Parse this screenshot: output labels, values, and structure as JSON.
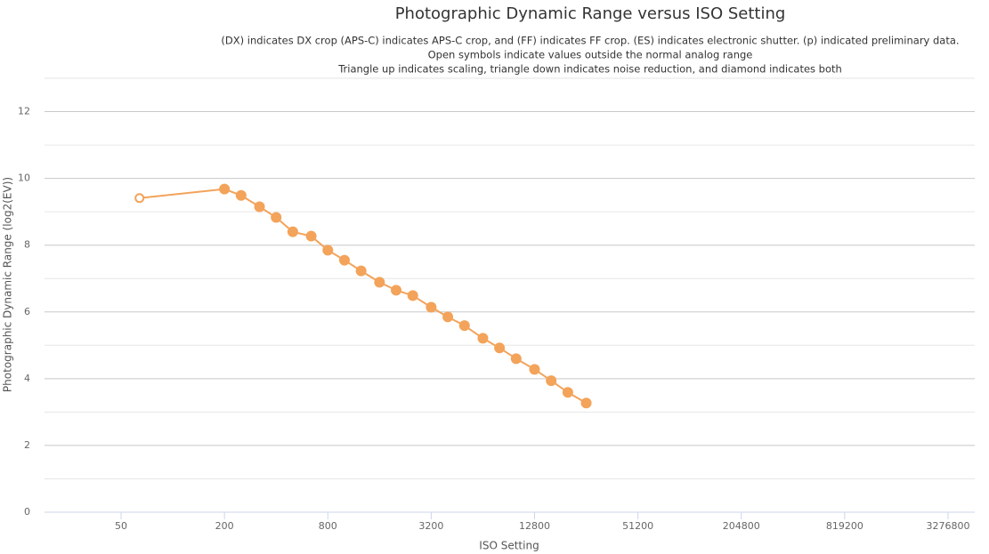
{
  "chart_data": {
    "type": "line",
    "title": "Photographic Dynamic Range versus ISO Setting",
    "subtitle": [
      "(DX) indicates DX crop (APS-C) indicates APS-C crop, and (FF) indicates FF crop. (ES) indicates electronic shutter. (p) indicated preliminary data.",
      "Open symbols indicate values outside the normal analog range",
      "Triangle up indicates scaling, triangle down indicates noise reduction, and diamond indicates both"
    ],
    "x_label": "ISO Setting",
    "y_label": "Photographic Dynamic Range (log2(EV))",
    "x_scale": "log",
    "x": [
      64,
      200,
      250,
      320,
      400,
      500,
      640,
      800,
      1000,
      1250,
      1600,
      2000,
      2500,
      3200,
      4000,
      5000,
      6400,
      8000,
      10000,
      12800,
      16000,
      20000,
      25600
    ],
    "series": [
      {
        "color": "#f3a35a",
        "values": [
          9.41,
          9.68,
          9.49,
          9.15,
          8.83,
          8.4,
          8.27,
          7.85,
          7.55,
          7.23,
          6.89,
          6.65,
          6.49,
          6.14,
          5.85,
          5.59,
          5.21,
          4.92,
          4.6,
          4.28,
          3.94,
          3.59,
          3.27
        ],
        "open": [
          true,
          false,
          false,
          false,
          false,
          false,
          false,
          false,
          false,
          false,
          false,
          false,
          false,
          false,
          false,
          false,
          false,
          false,
          false,
          false,
          false,
          false,
          false
        ]
      }
    ],
    "xlim": [
      17.9,
      4690000
    ],
    "xticks": [
      50,
      200,
      800,
      3200,
      12800,
      51200,
      204800,
      819200,
      3276800
    ],
    "ylim": [
      0,
      13
    ],
    "yticks": [
      0,
      2,
      4,
      6,
      8,
      10,
      12
    ],
    "y_minor_ticks": [
      1,
      3,
      5,
      7,
      9,
      11,
      13
    ],
    "grid": true
  }
}
